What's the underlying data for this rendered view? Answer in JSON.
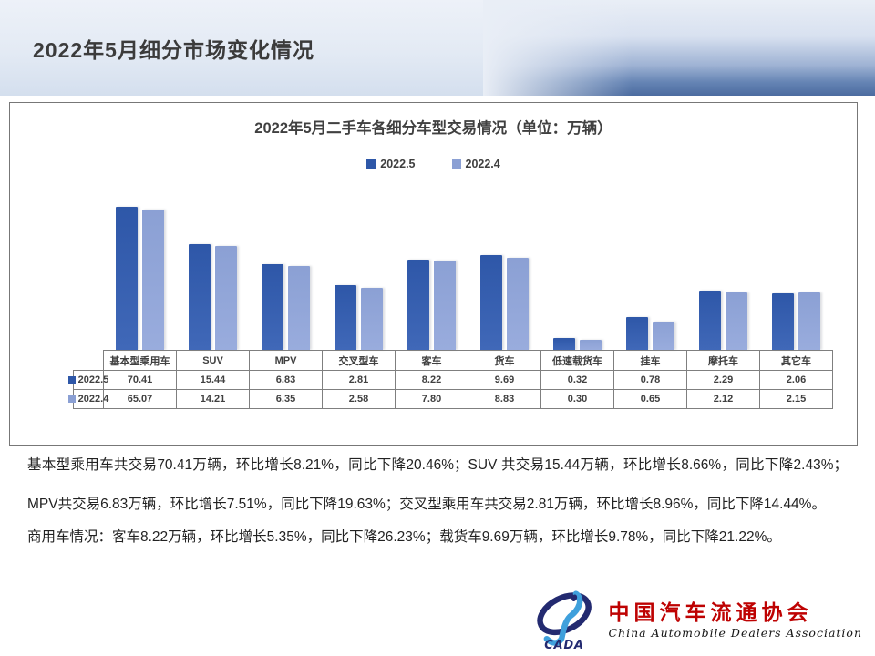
{
  "slide": {
    "title": "2022年5月细分市场变化情况"
  },
  "chart_data": {
    "type": "bar",
    "title": "2022年5月二手车各细分车型交易情况（单位：万辆）",
    "categories": [
      "基本型乘用车",
      "SUV",
      "MPV",
      "交叉型车",
      "客车",
      "货车",
      "低速载货车",
      "挂车",
      "摩托车",
      "其它车"
    ],
    "series": [
      {
        "name": "2022.5",
        "color": "#2E57A8",
        "color2": "#4068B8",
        "values": [
          70.41,
          15.44,
          6.83,
          2.81,
          8.22,
          9.69,
          0.32,
          0.78,
          2.29,
          2.06
        ]
      },
      {
        "name": "2022.4",
        "color": "#8BA0D4",
        "color2": "#99ACDD",
        "values": [
          65.07,
          14.21,
          6.35,
          2.58,
          7.8,
          8.83,
          0.3,
          0.65,
          2.12,
          2.15
        ]
      }
    ],
    "scale": "log",
    "axis_min": 0.2,
    "axis_max": 80,
    "grid": false,
    "legend_position": "top",
    "value_table_shown": true
  },
  "body": {
    "paragraph1": "基本型乘用车共交易70.41万辆，环比增长8.21%，同比下降20.46%；SUV 共交易15.44万辆，环比增长8.66%，同比下降2.43%；MPV共交易6.83万辆，环比增长7.51%，同比下降19.63%；交叉型乘用车共交易2.81万辆，环比增长8.96%，同比下降14.44%。",
    "paragraph2": "商用车情况：客车8.22万辆，环比增长5.35%，同比下降26.23%；载货车9.69万辆，环比增长9.78%，同比下降21.22%。"
  },
  "footer": {
    "logo_abbr": "CADA",
    "logo_cn": "中国汽车流通协会",
    "logo_en": "China Automobile Dealers Association",
    "logo_colors": {
      "red": "#BE0202",
      "navy": "#232A70",
      "blue": "#3FA0DC"
    }
  }
}
